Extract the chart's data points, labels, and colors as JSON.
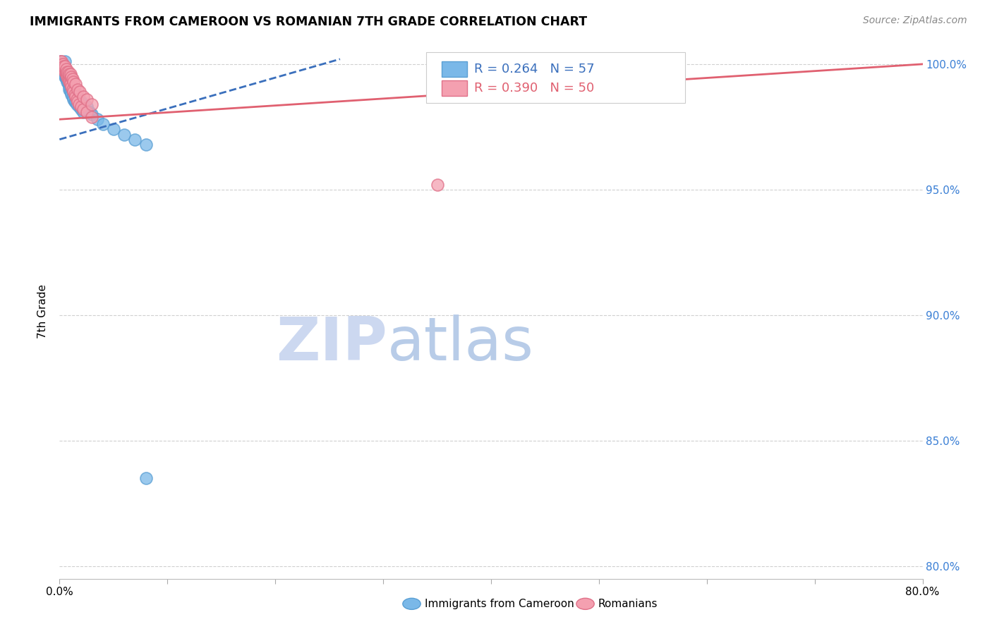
{
  "title": "IMMIGRANTS FROM CAMEROON VS ROMANIAN 7TH GRADE CORRELATION CHART",
  "source": "Source: ZipAtlas.com",
  "ylabel": "7th Grade",
  "xlim": [
    0.0,
    0.8
  ],
  "ylim": [
    0.795,
    1.008
  ],
  "xtick_positions": [
    0.0,
    0.1,
    0.2,
    0.3,
    0.4,
    0.5,
    0.6,
    0.7,
    0.8
  ],
  "xticklabels": [
    "0.0%",
    "",
    "",
    "",
    "",
    "",
    "",
    "",
    "80.0%"
  ],
  "ytick_positions": [
    0.8,
    0.85,
    0.9,
    0.95,
    1.0
  ],
  "yticklabels": [
    "80.0%",
    "85.0%",
    "90.0%",
    "95.0%",
    "100.0%"
  ],
  "ytick_color": "#3a7fd5",
  "cameroon_color": "#7ab8e8",
  "cameroon_edge_color": "#5a9fd4",
  "romanian_color": "#f4a0b0",
  "romanian_edge_color": "#e07088",
  "cameroon_line_color": "#3a6fbc",
  "romanian_line_color": "#e06070",
  "cameroon_R": 0.264,
  "cameroon_N": 57,
  "romanian_R": 0.39,
  "romanian_N": 50,
  "watermark_zip_color": "#ccd8f0",
  "watermark_atlas_color": "#b8cce8",
  "grid_color": "#d0d0d0",
  "cam_line_x0": 0.0,
  "cam_line_y0": 0.97,
  "cam_line_x1": 0.26,
  "cam_line_y1": 1.002,
  "rom_line_x0": 0.0,
  "rom_line_y0": 0.978,
  "rom_line_x1": 0.8,
  "rom_line_y1": 1.0,
  "cameroon_x": [
    0.001,
    0.001,
    0.002,
    0.002,
    0.003,
    0.003,
    0.004,
    0.004,
    0.005,
    0.005,
    0.005,
    0.006,
    0.006,
    0.007,
    0.007,
    0.008,
    0.008,
    0.009,
    0.009,
    0.01,
    0.01,
    0.011,
    0.012,
    0.013,
    0.014,
    0.015,
    0.016,
    0.018,
    0.02,
    0.022,
    0.001,
    0.002,
    0.003,
    0.004,
    0.005,
    0.006,
    0.007,
    0.008,
    0.009,
    0.01,
    0.011,
    0.012,
    0.014,
    0.016,
    0.018,
    0.02,
    0.022,
    0.025,
    0.028,
    0.03,
    0.035,
    0.04,
    0.05,
    0.06,
    0.07,
    0.08,
    0.08
  ],
  "cameroon_y": [
    1.0,
    0.999,
    0.999,
    0.998,
    0.998,
    0.997,
    0.997,
    0.996,
    0.996,
    0.995,
    1.001,
    0.995,
    0.994,
    0.994,
    0.993,
    0.993,
    0.992,
    0.991,
    0.99,
    0.99,
    0.989,
    0.988,
    0.987,
    0.986,
    0.985,
    0.985,
    0.984,
    0.983,
    0.982,
    0.981,
    1.001,
    1.0,
    0.999,
    0.998,
    0.997,
    0.996,
    0.995,
    0.994,
    0.993,
    0.992,
    0.991,
    0.99,
    0.989,
    0.987,
    0.986,
    0.985,
    0.984,
    0.983,
    0.981,
    0.98,
    0.978,
    0.976,
    0.974,
    0.972,
    0.97,
    0.968,
    0.835
  ],
  "romanian_x": [
    0.001,
    0.002,
    0.003,
    0.003,
    0.004,
    0.004,
    0.005,
    0.005,
    0.006,
    0.006,
    0.007,
    0.007,
    0.008,
    0.008,
    0.009,
    0.009,
    0.01,
    0.01,
    0.011,
    0.012,
    0.013,
    0.014,
    0.015,
    0.016,
    0.017,
    0.018,
    0.02,
    0.022,
    0.025,
    0.03,
    0.002,
    0.003,
    0.004,
    0.005,
    0.006,
    0.007,
    0.008,
    0.009,
    0.01,
    0.011,
    0.012,
    0.013,
    0.015,
    0.017,
    0.019,
    0.022,
    0.025,
    0.03,
    0.35,
    0.38
  ],
  "romanian_y": [
    1.001,
    1.0,
    1.0,
    0.999,
    0.999,
    0.998,
    0.998,
    0.997,
    0.997,
    0.996,
    0.996,
    0.995,
    0.995,
    0.994,
    0.994,
    0.993,
    0.993,
    0.992,
    0.991,
    0.99,
    0.989,
    0.988,
    0.987,
    0.986,
    0.985,
    0.984,
    0.983,
    0.982,
    0.981,
    0.979,
    1.001,
    1.0,
    0.999,
    0.999,
    0.998,
    0.997,
    0.997,
    0.996,
    0.996,
    0.995,
    0.994,
    0.993,
    0.992,
    0.99,
    0.989,
    0.987,
    0.986,
    0.984,
    0.952,
    1.0
  ]
}
